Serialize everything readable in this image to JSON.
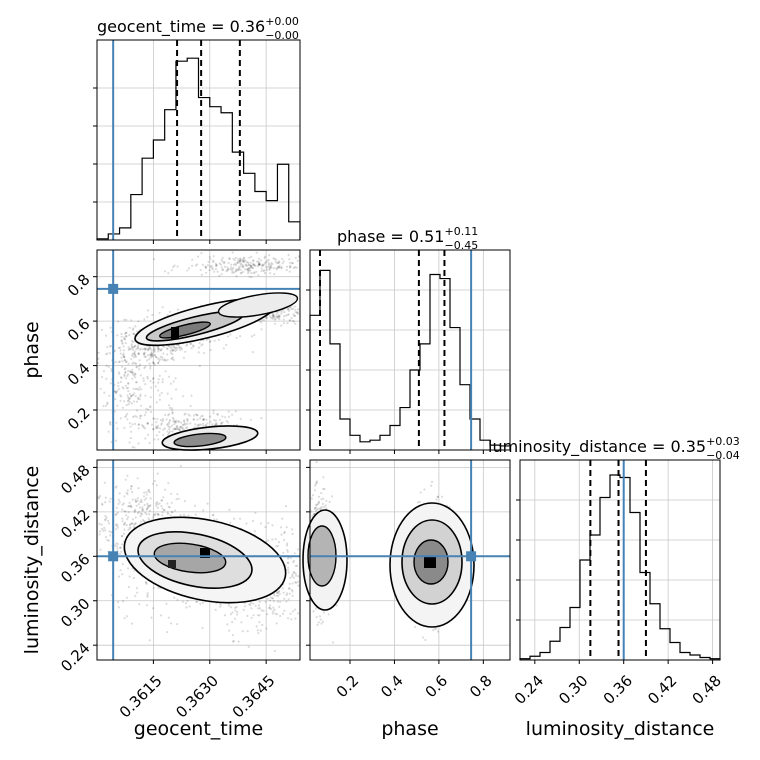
{
  "chart_data": {
    "type": "corner",
    "title": "",
    "parameters": [
      "geocent_time",
      "phase",
      "luminosity_distance"
    ],
    "titles": [
      {
        "param": "geocent_time",
        "label": "geocent_time = 0.36",
        "sup": "+0.00",
        "sub": "−0.00"
      },
      {
        "param": "phase",
        "label": "phase = 0.51",
        "sup": "+0.11",
        "sub": "−0.45"
      },
      {
        "param": "luminosity_distance",
        "label": "luminosity_distance = 0.35",
        "sup": "+0.03",
        "sub": "−0.04"
      }
    ],
    "axes": {
      "geocent_time": {
        "range": [
          0.36,
          0.3654
        ],
        "ticks": [
          0.3615,
          0.363,
          0.3645
        ],
        "tick_labels": [
          "0.3615",
          "0.3630",
          "0.3645"
        ]
      },
      "phase": {
        "range": [
          0.02,
          0.92
        ],
        "ticks": [
          0.2,
          0.4,
          0.6,
          0.8
        ],
        "tick_labels": [
          "0.2",
          "0.4",
          "0.6",
          "0.8"
        ]
      },
      "luminosity_distance": {
        "range": [
          0.22,
          0.49
        ],
        "ticks": [
          0.24,
          0.3,
          0.36,
          0.42,
          0.48
        ],
        "tick_labels": [
          "0.24",
          "0.30",
          "0.36",
          "0.42",
          "0.48"
        ]
      }
    },
    "x_labels": [
      "geocent_time",
      "phase",
      "luminosity_distance"
    ],
    "y_labels": [
      "phase",
      "luminosity_distance"
    ],
    "truth": {
      "geocent_time": 0.36043,
      "phase": 0.745,
      "luminosity_distance": 0.36
    },
    "truth_color": "#4682b4",
    "histograms": [
      {
        "param": "geocent_time",
        "bins": [
          0.36,
          0.3603,
          0.3606,
          0.3609,
          0.3612,
          0.3615,
          0.3618,
          0.3621,
          0.3624,
          0.3627,
          0.363,
          0.3633,
          0.3636,
          0.3639,
          0.3642,
          0.3645,
          0.3648,
          0.3651,
          0.3654
        ],
        "counts": [
          2,
          10,
          20,
          75,
          135,
          165,
          215,
          295,
          300,
          235,
          220,
          210,
          145,
          110,
          80,
          65,
          125,
          30
        ],
        "ymax": 330,
        "quantiles": [
          0.36213,
          0.36277,
          0.3638
        ]
      },
      {
        "param": "phase",
        "bins": [
          0.02,
          0.065,
          0.11,
          0.155,
          0.2,
          0.245,
          0.29,
          0.335,
          0.38,
          0.425,
          0.47,
          0.515,
          0.56,
          0.605,
          0.65,
          0.695,
          0.74,
          0.785,
          0.83,
          0.875,
          0.92
        ],
        "counts": [
          165,
          220,
          130,
          38,
          18,
          10,
          12,
          18,
          30,
          52,
          98,
          130,
          215,
          210,
          150,
          80,
          38,
          12,
          6,
          5
        ],
        "ymax": 245,
        "quantiles": [
          0.065,
          0.51,
          0.625
        ]
      },
      {
        "param": "luminosity_distance",
        "bins": [
          0.22,
          0.2335,
          0.247,
          0.2605,
          0.274,
          0.2875,
          0.301,
          0.3145,
          0.328,
          0.3415,
          0.355,
          0.3685,
          0.382,
          0.3955,
          0.409,
          0.4225,
          0.436,
          0.4495,
          0.463,
          0.4765,
          0.49
        ],
        "counts": [
          1,
          3,
          6,
          15,
          26,
          42,
          80,
          100,
          130,
          148,
          146,
          118,
          70,
          45,
          25,
          14,
          6,
          4,
          2,
          1
        ],
        "ymax": 160,
        "quantiles": [
          0.315,
          0.353,
          0.39
        ]
      }
    ],
    "contours": [
      {
        "x": "geocent_time",
        "y": "phase",
        "dense_cells": [
          [
            0.3615,
            0.55
          ],
          [
            0.3625,
            0.6
          ],
          [
            0.3618,
            0.57
          ],
          [
            0.363,
            0.62
          ],
          [
            0.3622,
            0.13
          ],
          [
            0.3625,
            0.1
          ],
          [
            0.3628,
            0.12
          ]
        ],
        "peak": [
          0.3619,
          0.55
        ]
      },
      {
        "x": "geocent_time",
        "y": "luminosity_distance",
        "dense_cells": [
          [
            0.3616,
            0.37
          ],
          [
            0.362,
            0.35
          ],
          [
            0.3624,
            0.36
          ],
          [
            0.3628,
            0.365
          ],
          [
            0.3618,
            0.34
          ],
          [
            0.3626,
            0.355
          ]
        ],
        "peak": [
          0.3628,
          0.365
        ]
      },
      {
        "x": "phase",
        "y": "luminosity_distance",
        "dense_cells": [
          [
            0.05,
            0.36
          ],
          [
            0.08,
            0.35
          ],
          [
            0.55,
            0.35
          ],
          [
            0.6,
            0.36
          ],
          [
            0.58,
            0.33
          ],
          [
            0.56,
            0.38
          ]
        ],
        "peak": [
          0.57,
          0.35
        ]
      }
    ]
  }
}
